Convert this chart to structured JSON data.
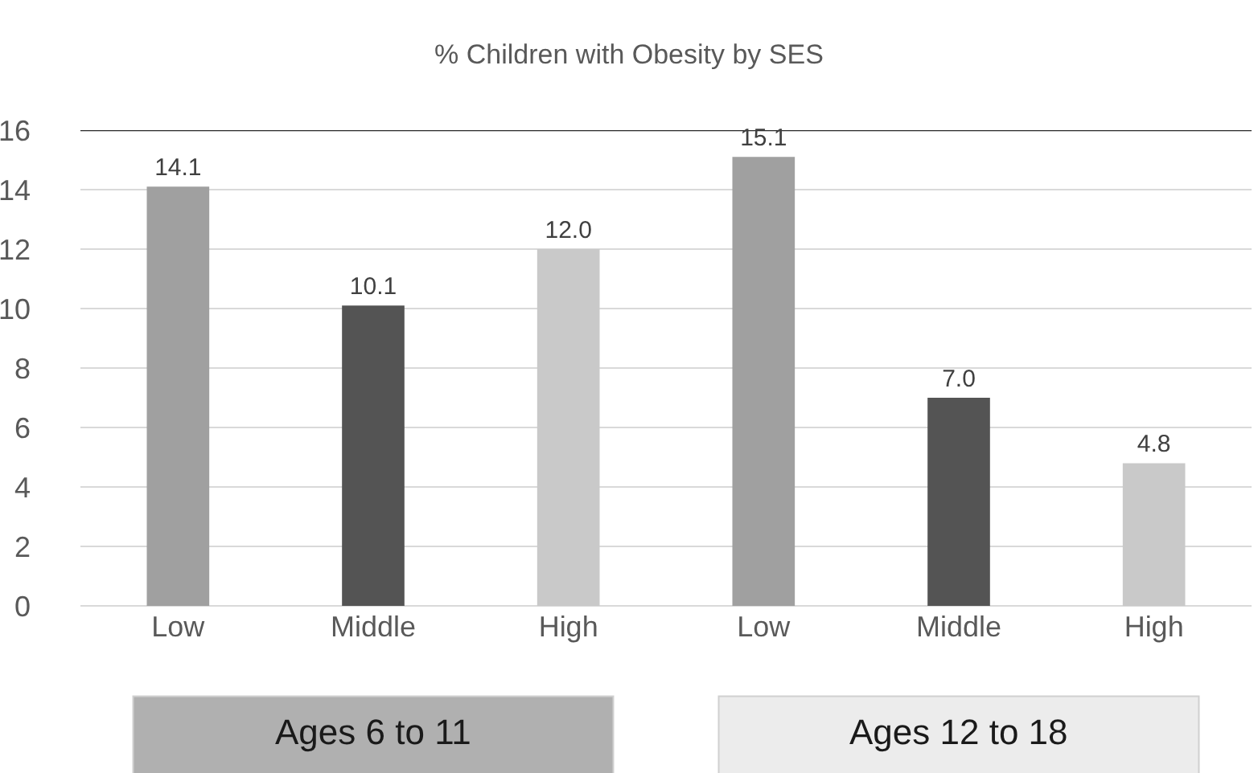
{
  "chart_data": {
    "type": "bar",
    "title": "% Children with Obesity by SES",
    "categories": [
      "Low",
      "Middle",
      "High",
      "Low",
      "Middle",
      "High"
    ],
    "values": [
      14.1,
      10.1,
      12.0,
      15.1,
      7.0,
      4.8
    ],
    "colors": [
      "#a0a0a0",
      "#545454",
      "#c9c9c9",
      "#a0a0a0",
      "#545454",
      "#c9c9c9"
    ],
    "value_labels": [
      "14.1",
      "10.1",
      "12.0",
      "15.1",
      "7.0",
      "4.8"
    ],
    "ylim": [
      0,
      16
    ],
    "yticks": [
      0,
      2,
      4,
      6,
      8,
      10,
      12,
      14,
      16
    ],
    "grid": "y",
    "ref_lines": [
      {
        "axis": "y",
        "value": 16,
        "color": "#262626"
      }
    ],
    "annotations": [
      "Ages 6 to 11",
      "Ages 12 to 18"
    ]
  }
}
